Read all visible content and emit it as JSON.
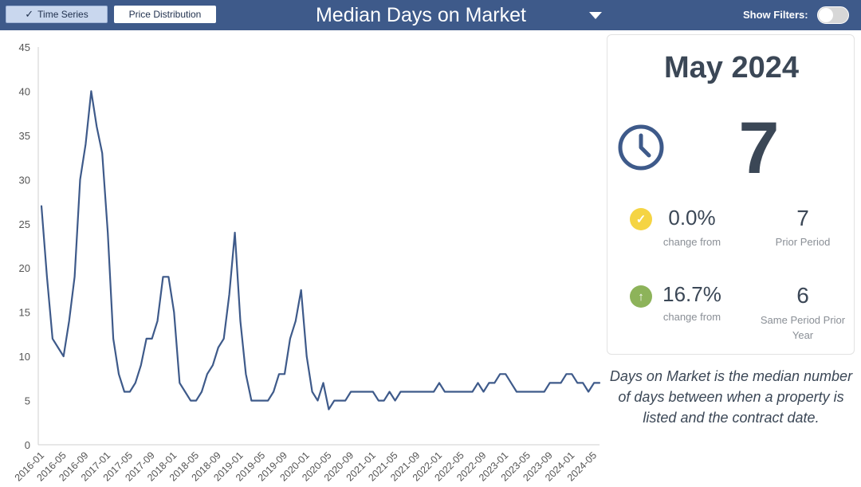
{
  "header": {
    "tabs": [
      {
        "label": "Time Series",
        "selected": true
      },
      {
        "label": "Price Distribution",
        "selected": false
      }
    ],
    "title": "Median Days on Market",
    "filters_label": "Show Filters:",
    "filters_on": false
  },
  "colors": {
    "header_bg": "#3e5a8a",
    "line": "#3e5a8a",
    "check_icon": "#f5d443",
    "up_icon": "#8db35a",
    "text": "#3b4756"
  },
  "icons": {
    "tab_check": "check-icon",
    "title_caret": "caret-down-icon",
    "card_clock": "clock-icon",
    "stat1_icon": "check-circle-icon",
    "stat2_icon": "arrow-up-circle-icon"
  },
  "card": {
    "period": "May 2024",
    "value": "7",
    "stat1": {
      "pct": "0.0%",
      "sub": "change from",
      "value": "7",
      "caption": "Prior Period"
    },
    "stat2": {
      "pct": "16.7%",
      "sub": "change from",
      "value": "6",
      "caption_line1": "Same Period Prior",
      "caption_line2": "Year"
    }
  },
  "definition": "Days on Market is the median number of days between when a property is listed and the contract date.",
  "chart_data": {
    "type": "line",
    "title": "",
    "xlabel": "",
    "ylabel": "",
    "ylim": [
      0,
      45
    ],
    "yticks": [
      0,
      5,
      10,
      15,
      20,
      25,
      30,
      35,
      40,
      45
    ],
    "grid": false,
    "start": "2016-01",
    "xtick_labels": [
      "2016-01",
      "2016-05",
      "2016-09",
      "2017-01",
      "2017-05",
      "2017-09",
      "2018-01",
      "2018-05",
      "2018-09",
      "2019-01",
      "2019-05",
      "2019-09",
      "2020-01",
      "2020-05",
      "2020-09",
      "2021-01",
      "2021-05",
      "2021-09",
      "2022-01",
      "2022-05",
      "2022-09",
      "2023-01",
      "2023-05",
      "2023-09",
      "2024-01",
      "2024-05"
    ],
    "series": [
      {
        "values": [
          27,
          19,
          12,
          11,
          10,
          14,
          19,
          30,
          34,
          40,
          36,
          33,
          24,
          12,
          8,
          6,
          6,
          7,
          9,
          12,
          12,
          14,
          19,
          19,
          15,
          7,
          6,
          5,
          5,
          6,
          8,
          9,
          11,
          12,
          17,
          24,
          14,
          8,
          5,
          5,
          5,
          5,
          6,
          8,
          8,
          12,
          14,
          17.5,
          10,
          6,
          5,
          7,
          4,
          5,
          5,
          5,
          6,
          6,
          6,
          6,
          6,
          5,
          5,
          6,
          5,
          6,
          6,
          6,
          6,
          6,
          6,
          6,
          7,
          6,
          6,
          6,
          6,
          6,
          6,
          7,
          6,
          7,
          7,
          8,
          8,
          7,
          6,
          6,
          6,
          6,
          6,
          6,
          7,
          7,
          7,
          8,
          8,
          7,
          7,
          6,
          7,
          7
        ]
      }
    ]
  }
}
